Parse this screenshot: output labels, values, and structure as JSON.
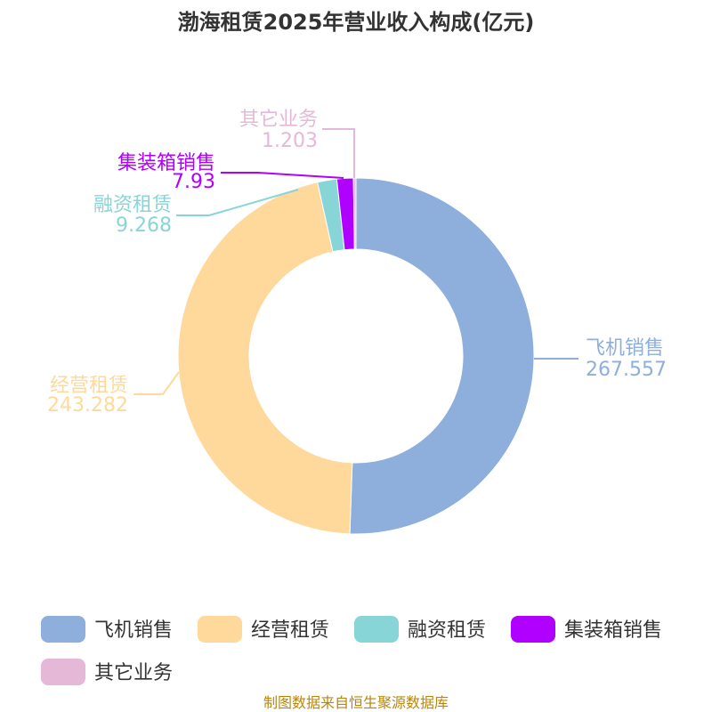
{
  "chart_data": {
    "type": "pie",
    "title": "渤海租赁2025年营业收入构成(亿元)",
    "series": [
      {
        "name": "飞机销售",
        "value": 267.557,
        "value_label": "267.557",
        "color": "#8eaedb"
      },
      {
        "name": "经营租赁",
        "value": 243.282,
        "value_label": "243.282",
        "color": "#fed99b"
      },
      {
        "name": "融资租赁",
        "value": 9.268,
        "value_label": "9.268",
        "color": "#88d5d8"
      },
      {
        "name": "集装箱销售",
        "value": 7.93,
        "value_label": "7.93",
        "color": "#b000ff"
      },
      {
        "name": "其它业务",
        "value": 1.203,
        "value_label": "1.203",
        "color": "#e6b8d8"
      }
    ],
    "legend_position": "bottom",
    "donut": true
  },
  "footer": {
    "source": "制图数据来自恒生聚源数据库"
  }
}
